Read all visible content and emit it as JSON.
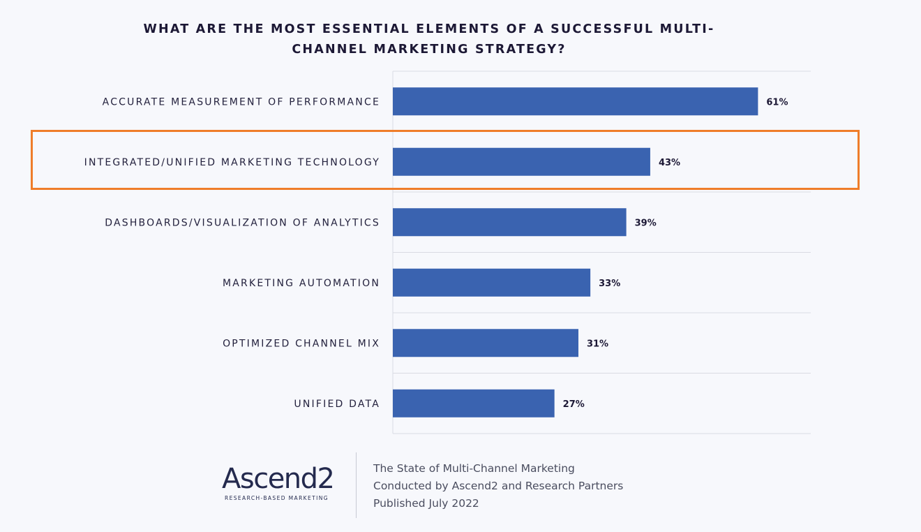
{
  "chart_data": {
    "type": "bar",
    "orientation": "horizontal",
    "title_lines": [
      "WHAT ARE THE MOST ESSENTIAL ELEMENTS OF A SUCCESSFUL MULTI-",
      "CHANNEL MARKETING STRATEGY?"
    ],
    "categories": [
      "ACCURATE MEASUREMENT OF PERFORMANCE",
      "INTEGRATED/UNIFIED MARKETING TECHNOLOGY",
      "DASHBOARDS/VISUALIZATION OF ANALYTICS",
      "MARKETING AUTOMATION",
      "OPTIMIZED CHANNEL MIX",
      "UNIFIED DATA"
    ],
    "values": [
      61,
      43,
      39,
      33,
      31,
      27
    ],
    "value_labels": [
      "61%",
      "43%",
      "39%",
      "33%",
      "31%",
      "27%"
    ],
    "xlim": [
      0,
      70
    ],
    "highlighted_category": "INTEGRATED/UNIFIED MARKETING TECHNOLOGY",
    "colors": {
      "bar": "#3a63b0",
      "highlight": "#ef7d2a",
      "grid": "#d9dbe3"
    }
  },
  "footer": {
    "logo": {
      "name": "Ascend2",
      "tagline": "RESEARCH-BASED MARKETING"
    },
    "info_lines": [
      "The State of Multi-Channel Marketing",
      "Conducted by Ascend2 and Research Partners",
      "Published July 2022"
    ]
  }
}
